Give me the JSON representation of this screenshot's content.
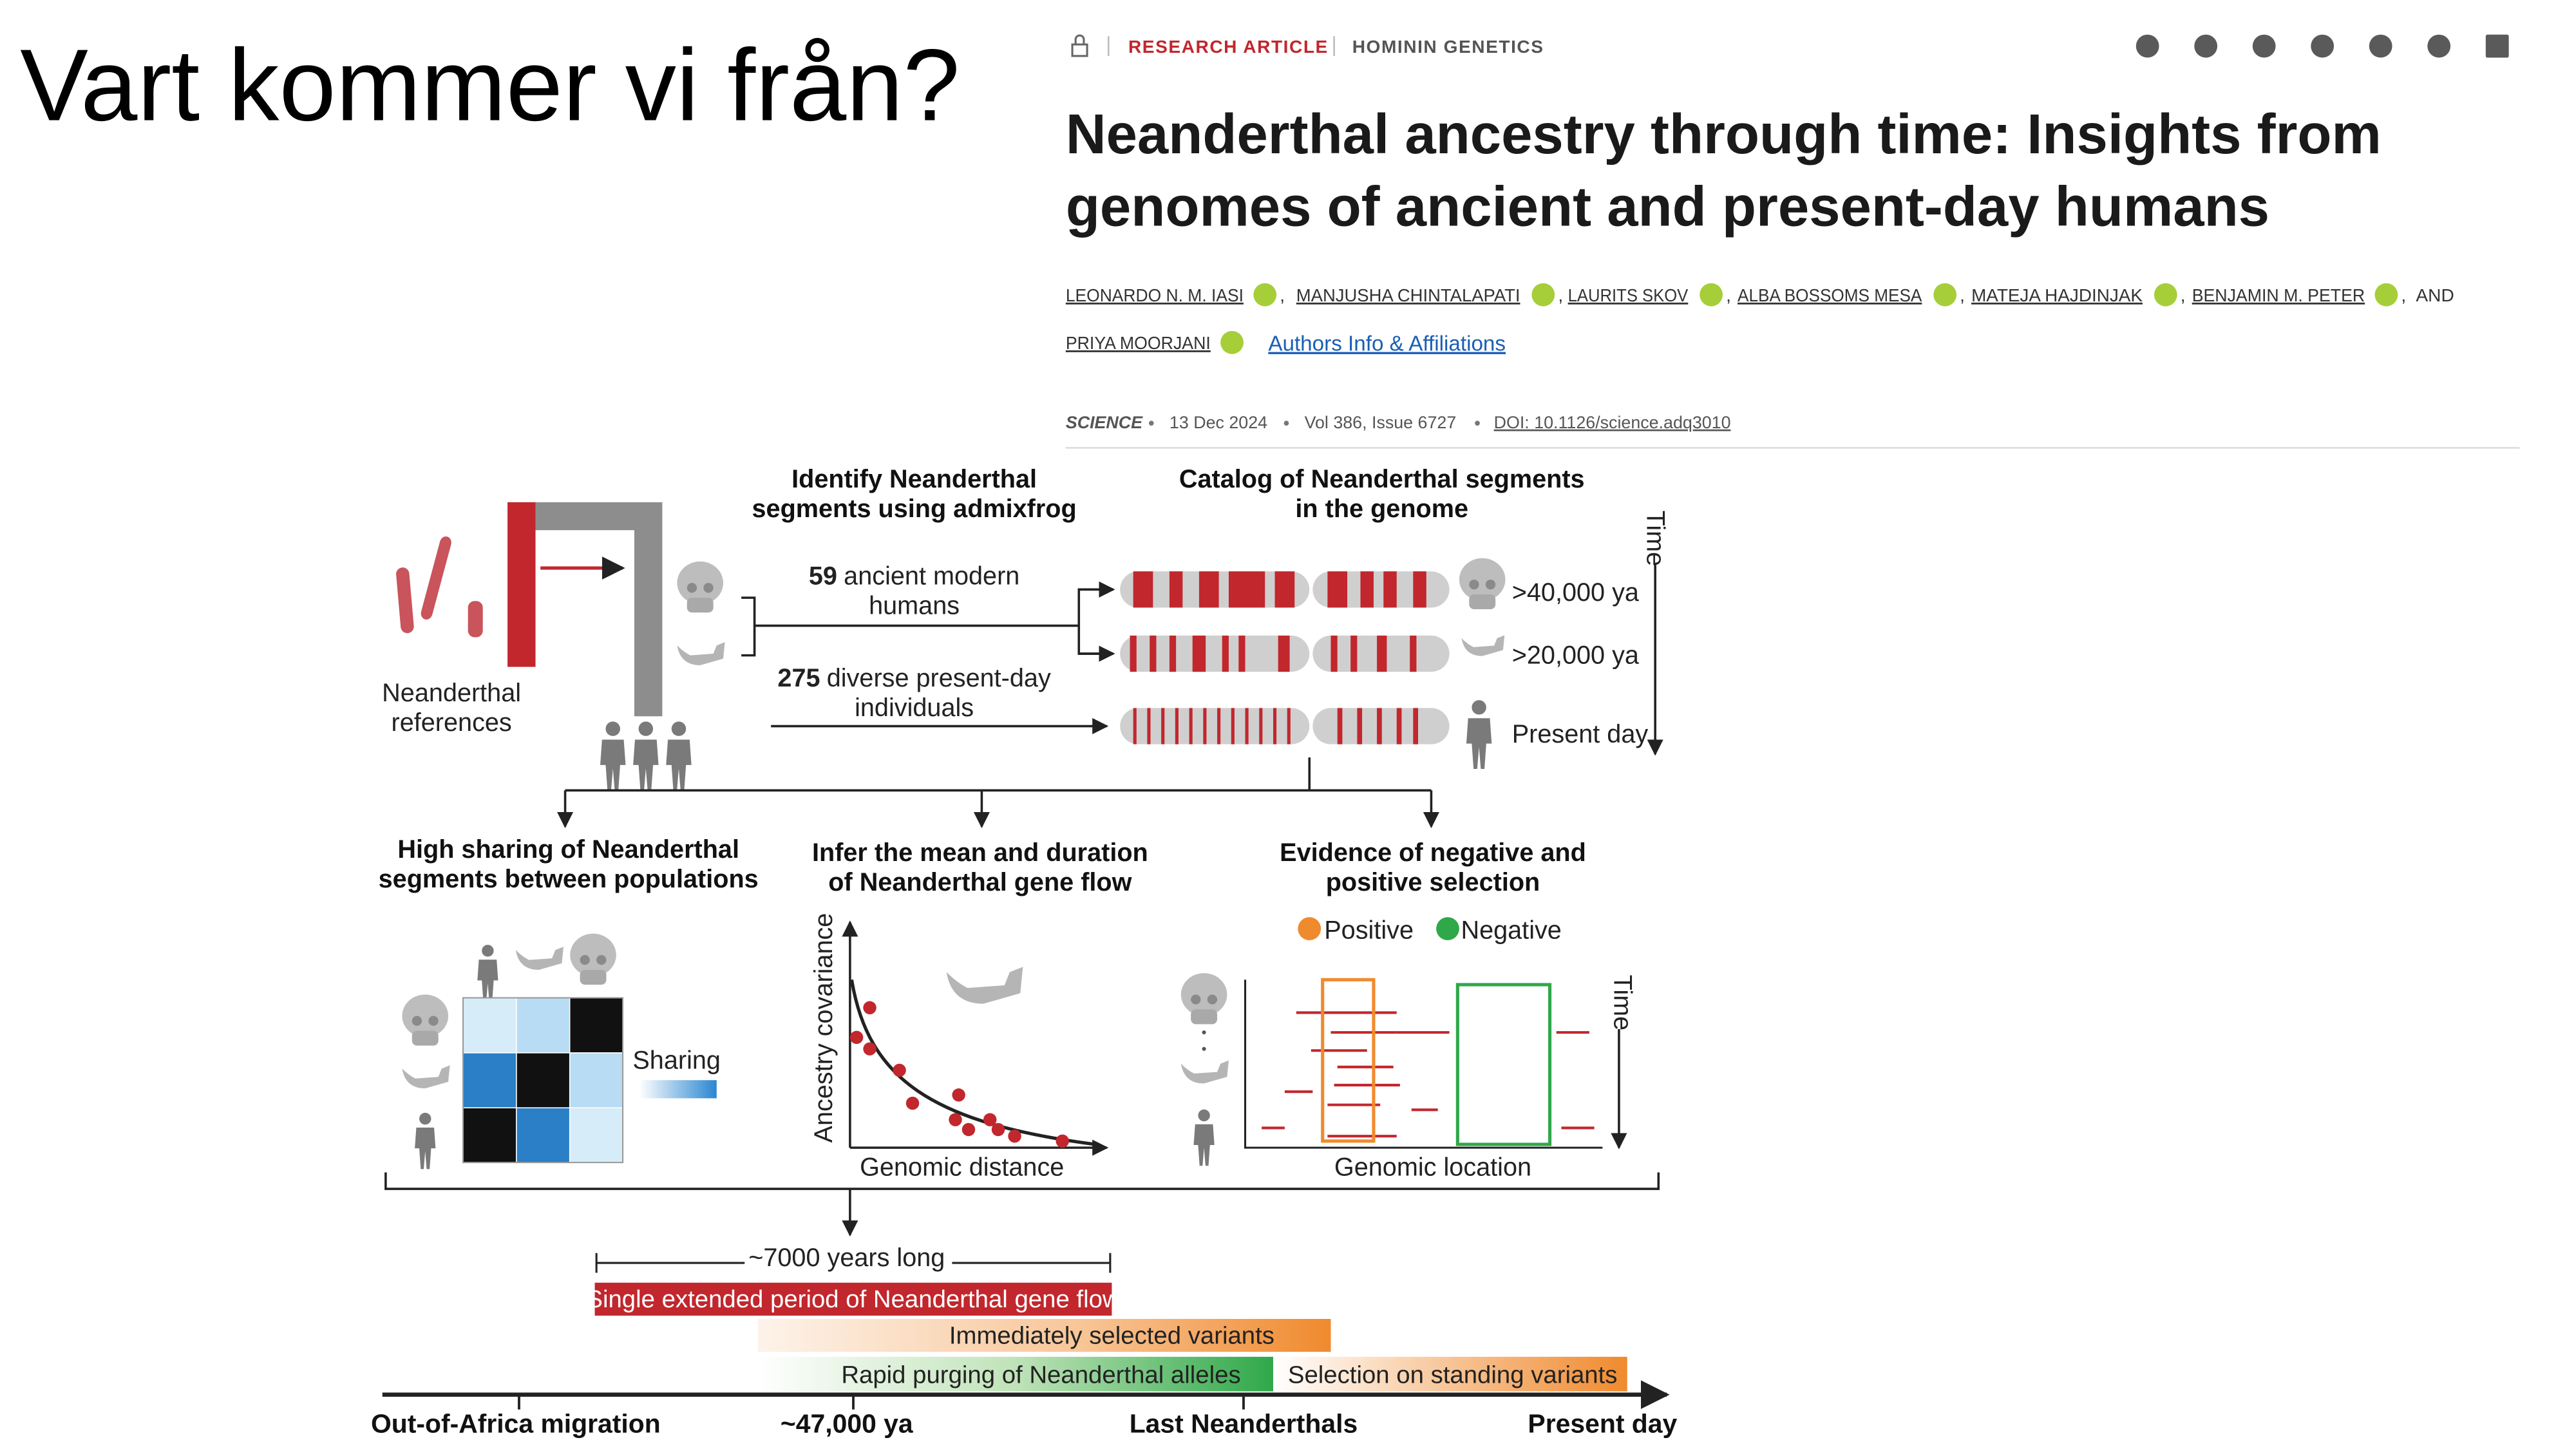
{
  "slide": {
    "title": "Vart kommer vi från?"
  },
  "article": {
    "category": "RESEARCH ARTICLE",
    "subject": "HOMININ GENETICS",
    "title_lines": [
      "Neanderthal ancestry through time: Insights from",
      "genomes of ancient and present-day humans"
    ],
    "authors": [
      "LEONARDO N. M. IASI",
      "MANJUSHA CHINTALAPATI",
      "LAURITS SKOV",
      "ALBA BOSSOMS MESA",
      "MATEJA HAJDINJAK",
      "BENJAMIN M. PETER",
      "PRIYA MOORJANI"
    ],
    "separator": ",",
    "conjunction": "AND",
    "authors_link": "Authors Info & Affiliations",
    "journal": "SCIENCE",
    "date": "13 Dec 2024",
    "volume": "Vol 386, Issue 6727",
    "doi": "DOI: 10.1126/science.adq3010"
  },
  "figure": {
    "identify": [
      "Identify Neanderthal",
      "segments using admixfrog"
    ],
    "catalog": [
      "Catalog of Neanderthal segments",
      "in the genome"
    ],
    "references": [
      "Neanderthal",
      "references"
    ],
    "ancient": {
      "count": 59,
      "lines": [
        "ancient modern",
        "humans"
      ]
    },
    "present": {
      "count": 275,
      "lines": [
        "diverse present-day",
        "individuals"
      ]
    },
    "ages": [
      ">40,000 ya",
      ">20,000 ya",
      "Present day"
    ],
    "time": "Time",
    "sharing": {
      "title": [
        "High sharing of Neanderthal",
        "segments between populations"
      ],
      "label": "Sharing"
    },
    "gene_flow": {
      "title": [
        "Infer the mean and duration",
        "of  Neanderthal gene flow"
      ],
      "y_label": "Ancestry covariance",
      "x_label": "Genomic distance"
    },
    "selection": {
      "title": [
        "Evidence of negative and",
        "positive selection"
      ],
      "legend": [
        "Positive",
        "Negative"
      ],
      "time": "Time",
      "x_label": "Genomic location"
    },
    "timeline": {
      "duration": "~7000 years long",
      "periods": [
        "Single extended period of Neanderthal gene flow",
        "Immediately selected variants",
        "Rapid purging of Neanderthal alleles",
        "Selection on standing variants"
      ],
      "milestones": [
        "Out-of-Africa migration",
        "~47,000 ya",
        "Last Neanderthals",
        "Present day"
      ]
    }
  }
}
